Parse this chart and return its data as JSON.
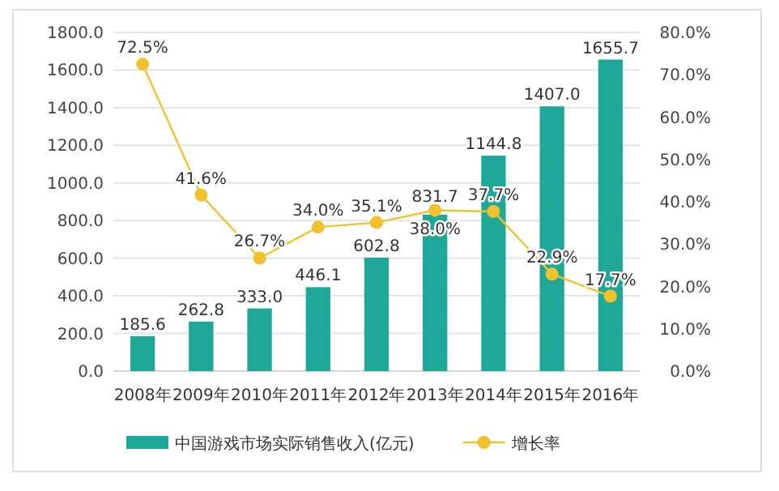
{
  "chart_data": {
    "type": "bar",
    "categories": [
      "2008年",
      "2009年",
      "2010年",
      "2011年",
      "2012年",
      "2013年",
      "2014年",
      "2015年",
      "2016年"
    ],
    "series": [
      {
        "name": "中国游戏市场实际销售收入(亿元)",
        "color": "#1fa898",
        "values": [
          185.6,
          262.8,
          333.0,
          446.1,
          602.8,
          831.7,
          1144.8,
          1407.0,
          1655.7
        ],
        "value_labels": [
          "185.6",
          "262.8",
          "333.0",
          "446.1",
          "602.8",
          "831.7",
          "1144.8",
          "1407.0",
          "1655.7"
        ]
      },
      {
        "name": "增长率",
        "type": "line",
        "axis": "y2",
        "color": "#f2c12e",
        "marker": "circle",
        "values": [
          72.5,
          41.6,
          26.7,
          34.0,
          35.1,
          38.0,
          37.7,
          22.9,
          17.7
        ],
        "value_labels": [
          "72.5%",
          "41.6%",
          "26.7%",
          "34.0%",
          "35.1%",
          "38.0%",
          "37.7%",
          "22.9%",
          "17.7%"
        ]
      }
    ],
    "ylim": [
      0,
      1800
    ],
    "yticks": [
      {
        "value": 0,
        "label": "0.0"
      },
      {
        "value": 200,
        "label": "200.0"
      },
      {
        "value": 400,
        "label": "400.0"
      },
      {
        "value": 600,
        "label": "600.0"
      },
      {
        "value": 800,
        "label": "800.0"
      },
      {
        "value": 1000,
        "label": "1000.0"
      },
      {
        "value": 1200,
        "label": "1200.0"
      },
      {
        "value": 1400,
        "label": "1400.0"
      },
      {
        "value": 1600,
        "label": "1600.0"
      },
      {
        "value": 1800,
        "label": "1800.0"
      }
    ],
    "y2lim": [
      0,
      80
    ],
    "y2ticks": [
      {
        "value": 0,
        "label": "0.0%"
      },
      {
        "value": 10,
        "label": "10.0%"
      },
      {
        "value": 20,
        "label": "20.0%"
      },
      {
        "value": 30,
        "label": "30.0%"
      },
      {
        "value": 40,
        "label": "40.0%"
      },
      {
        "value": 50,
        "label": "50.0%"
      },
      {
        "value": 60,
        "label": "60.0%"
      },
      {
        "value": 70,
        "label": "70.0%"
      },
      {
        "value": 80,
        "label": "80.0%"
      }
    ],
    "grid": "y",
    "legend": "bottom"
  }
}
